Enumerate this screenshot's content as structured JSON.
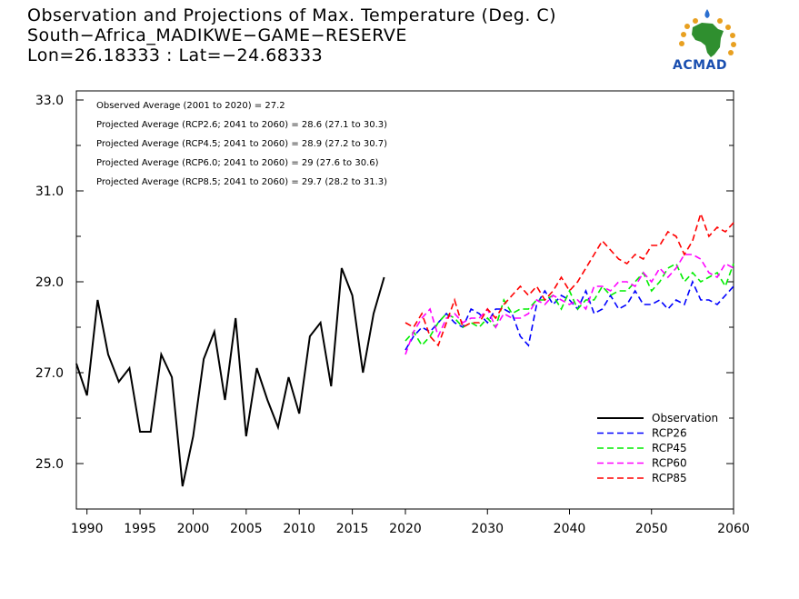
{
  "header": {
    "title_line1": "Observation and Projections of Max. Temperature (Deg. C)",
    "title_line2": "South−Africa_MADIKWE−GAME−RESERVE",
    "title_line3": "Lon=26.18333 : Lat=−24.68333"
  },
  "logo": {
    "text": "ACMAD",
    "icon": "africa-map-logo"
  },
  "colors": {
    "observation": "#000000",
    "rcp26": "#0000ff",
    "rcp45": "#00ee00",
    "rcp60": "#ff00ff",
    "rcp85": "#ff0000"
  },
  "annotations": [
    "Observed Average (2001 to 2020) = 27.2",
    "Projected Average (RCP2.6; 2041 to 2060) = 28.6 (27.1 to 30.3)",
    "Projected Average (RCP4.5; 2041 to 2060) = 28.9 (27.2 to 30.7)",
    "Projected Average (RCP6.0; 2041 to 2060) = 29 (27.6 to 30.6)",
    "Projected Average (RCP8.5; 2041 to 2060) = 29.7 (28.2 to 31.3)"
  ],
  "chart_data": {
    "type": "line",
    "title": "Observation and Projections of Max. Temperature (Deg. C)",
    "xlabel": "",
    "ylabel": "",
    "ylim": [
      24.0,
      33.2
    ],
    "y_ticks": [
      "25.0",
      "27.0",
      "29.0",
      "31.0",
      "33.0"
    ],
    "x_ticks": [
      "1990",
      "1995",
      "2000",
      "2005",
      "2010",
      "2015",
      "2020",
      "2030",
      "2040",
      "2050",
      "2060"
    ],
    "x_axis_note": "piecewise axis: 1989-2020 on an expanded scale, 2020-2060 compressed",
    "legend_position": "bottom-right",
    "series": [
      {
        "name": "Observation",
        "style": "solid",
        "x": [
          1989,
          1990,
          1991,
          1992,
          1993,
          1994,
          1995,
          1996,
          1997,
          1998,
          1999,
          2000,
          2001,
          2002,
          2003,
          2004,
          2005,
          2006,
          2007,
          2008,
          2009,
          2010,
          2011,
          2012,
          2013,
          2014,
          2015,
          2016,
          2017,
          2018,
          2019
        ],
        "values": [
          27.2,
          26.5,
          28.6,
          27.4,
          26.8,
          27.1,
          25.7,
          25.7,
          27.4,
          26.9,
          24.5,
          25.6,
          27.3,
          27.9,
          26.4,
          28.2,
          25.6,
          27.1,
          26.4,
          25.8,
          26.9,
          26.1,
          27.8,
          28.1,
          26.7,
          29.3,
          28.7,
          27.0,
          28.3,
          29.1,
          null
        ]
      },
      {
        "name": "RCP26",
        "style": "dashed",
        "x": [
          2020,
          2021,
          2022,
          2023,
          2024,
          2025,
          2026,
          2027,
          2028,
          2029,
          2030,
          2031,
          2032,
          2033,
          2034,
          2035,
          2036,
          2037,
          2038,
          2039,
          2040,
          2041,
          2042,
          2043,
          2044,
          2045,
          2046,
          2047,
          2048,
          2049,
          2050,
          2051,
          2052,
          2053,
          2054,
          2055,
          2056,
          2057,
          2058,
          2059,
          2060
        ],
        "values": [
          27.5,
          27.8,
          28.0,
          27.9,
          28.1,
          28.3,
          28.1,
          28.0,
          28.4,
          28.3,
          28.1,
          28.4,
          28.4,
          28.3,
          27.8,
          27.6,
          28.5,
          28.8,
          28.5,
          28.7,
          28.6,
          28.4,
          28.8,
          28.3,
          28.4,
          28.7,
          28.4,
          28.5,
          28.8,
          28.5,
          28.5,
          28.6,
          28.4,
          28.6,
          28.5,
          29.0,
          28.6,
          28.6,
          28.5,
          28.7,
          28.9
        ]
      },
      {
        "name": "RCP45",
        "style": "dashed",
        "x": [
          2020,
          2021,
          2022,
          2023,
          2024,
          2025,
          2026,
          2027,
          2028,
          2029,
          2030,
          2031,
          2032,
          2033,
          2034,
          2035,
          2036,
          2037,
          2038,
          2039,
          2040,
          2041,
          2042,
          2043,
          2044,
          2045,
          2046,
          2047,
          2048,
          2049,
          2050,
          2051,
          2052,
          2053,
          2054,
          2055,
          2056,
          2057,
          2058,
          2059,
          2060
        ],
        "values": [
          27.7,
          27.9,
          27.6,
          27.8,
          28.1,
          28.3,
          28.2,
          28.0,
          28.1,
          28.0,
          28.2,
          28.0,
          28.6,
          28.3,
          28.4,
          28.4,
          28.6,
          28.6,
          28.7,
          28.4,
          28.8,
          28.4,
          28.6,
          28.6,
          28.9,
          28.7,
          28.8,
          28.8,
          29.0,
          29.2,
          28.8,
          29.0,
          29.3,
          29.4,
          29.0,
          29.2,
          29.0,
          29.1,
          29.2,
          28.9,
          29.4
        ]
      },
      {
        "name": "RCP60",
        "style": "dashed",
        "x": [
          2020,
          2021,
          2022,
          2023,
          2024,
          2025,
          2026,
          2027,
          2028,
          2029,
          2030,
          2031,
          2032,
          2033,
          2034,
          2035,
          2036,
          2037,
          2038,
          2039,
          2040,
          2041,
          2042,
          2043,
          2044,
          2045,
          2046,
          2047,
          2048,
          2049,
          2050,
          2051,
          2052,
          2053,
          2054,
          2055,
          2056,
          2057,
          2058,
          2059,
          2060
        ],
        "values": [
          27.4,
          27.9,
          28.2,
          28.4,
          27.8,
          28.2,
          28.3,
          28.1,
          28.2,
          28.2,
          28.4,
          28.0,
          28.3,
          28.2,
          28.2,
          28.3,
          28.6,
          28.5,
          28.7,
          28.6,
          28.5,
          28.6,
          28.4,
          28.9,
          28.9,
          28.8,
          29.0,
          29.0,
          28.9,
          29.2,
          29.0,
          29.3,
          29.1,
          29.3,
          29.6,
          29.6,
          29.5,
          29.2,
          29.1,
          29.4,
          29.3
        ]
      },
      {
        "name": "RCP85",
        "style": "dashed",
        "x": [
          2020,
          2021,
          2022,
          2023,
          2024,
          2025,
          2026,
          2027,
          2028,
          2029,
          2030,
          2031,
          2032,
          2033,
          2034,
          2035,
          2036,
          2037,
          2038,
          2039,
          2040,
          2041,
          2042,
          2043,
          2044,
          2045,
          2046,
          2047,
          2048,
          2049,
          2050,
          2051,
          2052,
          2053,
          2054,
          2055,
          2056,
          2057,
          2058,
          2059,
          2060
        ],
        "values": [
          28.1,
          28.0,
          28.3,
          27.8,
          27.6,
          28.1,
          28.6,
          28.0,
          28.1,
          28.1,
          28.4,
          28.2,
          28.5,
          28.7,
          28.9,
          28.7,
          28.9,
          28.6,
          28.8,
          29.1,
          28.8,
          29.0,
          29.3,
          29.6,
          29.9,
          29.7,
          29.5,
          29.4,
          29.6,
          29.5,
          29.8,
          29.8,
          30.1,
          30.0,
          29.6,
          29.9,
          30.5,
          30.0,
          30.2,
          30.1,
          30.3
        ]
      }
    ]
  }
}
